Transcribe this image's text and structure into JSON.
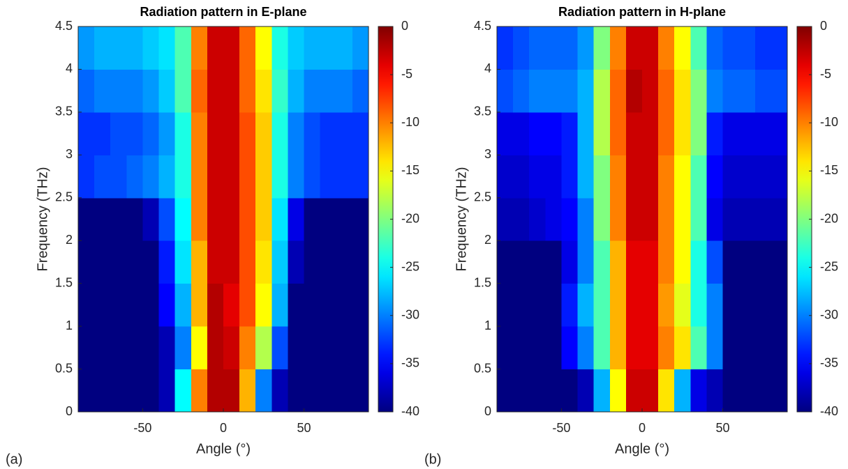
{
  "chart_data": [
    {
      "type": "heatmap",
      "panel_label": "(a)",
      "title": "Radiation pattern in E-plane",
      "x_label": "Angle (°)",
      "y_label": "Frequency (THz)",
      "colormap": "jet",
      "clim": [
        -40,
        0
      ],
      "cticks": [
        0,
        -5,
        -10,
        -15,
        -20,
        -25,
        -30,
        -35,
        -40
      ],
      "xlim": [
        -90,
        90
      ],
      "xticks": [
        -50,
        0,
        50
      ],
      "ylim": [
        0,
        4.5
      ],
      "yticks": [
        0,
        0.5,
        1,
        1.5,
        2,
        2.5,
        3,
        3.5,
        4,
        4.5
      ],
      "x": [
        -85,
        -75,
        -65,
        -55,
        -45,
        -35,
        -25,
        -15,
        -5,
        5,
        15,
        25,
        35,
        45,
        55,
        65,
        75,
        85
      ],
      "y": [
        0.25,
        0.75,
        1.25,
        1.75,
        2.25,
        2.75,
        3.25,
        3.75,
        4.25
      ],
      "z": [
        [
          -40,
          -40,
          -40,
          -40,
          -40,
          -38,
          -25,
          -10,
          -2,
          -2,
          -12,
          -30,
          -38,
          -40,
          -40,
          -40,
          -40,
          -40
        ],
        [
          -40,
          -40,
          -40,
          -40,
          -40,
          -38,
          -30,
          -15,
          -2,
          -3,
          -10,
          -18,
          -32,
          -40,
          -40,
          -40,
          -40,
          -40
        ],
        [
          -40,
          -40,
          -40,
          -40,
          -40,
          -35,
          -28,
          -12,
          -2,
          -4,
          -8,
          -15,
          -28,
          -40,
          -40,
          -40,
          -40,
          -40
        ],
        [
          -40,
          -40,
          -40,
          -40,
          -40,
          -34,
          -26,
          -12,
          -3,
          -3,
          -8,
          -14,
          -27,
          -38,
          -40,
          -40,
          -40,
          -40
        ],
        [
          -40,
          -40,
          -40,
          -40,
          -38,
          -32,
          -25,
          -10,
          -3,
          -3,
          -8,
          -13,
          -26,
          -36,
          -40,
          -40,
          -40,
          -40
        ],
        [
          -33,
          -32,
          -32,
          -31,
          -30,
          -28,
          -24,
          -10,
          -3,
          -3,
          -8,
          -13,
          -24,
          -30,
          -32,
          -33,
          -33,
          -33
        ],
        [
          -33,
          -33,
          -32,
          -32,
          -31,
          -29,
          -24,
          -10,
          -3,
          -3,
          -8,
          -13,
          -24,
          -30,
          -32,
          -33,
          -33,
          -33
        ],
        [
          -31,
          -30,
          -30,
          -30,
          -29,
          -27,
          -22,
          -9,
          -3,
          -3,
          -9,
          -14,
          -23,
          -28,
          -30,
          -30,
          -30,
          -31
        ],
        [
          -29,
          -28,
          -28,
          -28,
          -27,
          -26,
          -22,
          -10,
          -3,
          -3,
          -9,
          -15,
          -24,
          -27,
          -28,
          -28,
          -28,
          -29
        ]
      ]
    },
    {
      "type": "heatmap",
      "panel_label": "(b)",
      "title": "Radiation pattern in H-plane",
      "x_label": "Angle (°)",
      "y_label": "Frequency (THz)",
      "colormap": "jet",
      "clim": [
        -40,
        0
      ],
      "cticks": [
        0,
        -5,
        -10,
        -15,
        -20,
        -25,
        -30,
        -35,
        -40
      ],
      "xlim": [
        -90,
        90
      ],
      "xticks": [
        -50,
        0,
        50
      ],
      "ylim": [
        0,
        4.5
      ],
      "yticks": [
        0,
        0.5,
        1,
        1.5,
        2,
        2.5,
        3,
        3.5,
        4,
        4.5
      ],
      "x": [
        -85,
        -75,
        -65,
        -55,
        -45,
        -35,
        -25,
        -15,
        -5,
        5,
        15,
        25,
        35,
        45,
        55,
        65,
        75,
        85
      ],
      "y": [
        0.25,
        0.75,
        1.25,
        1.75,
        2.25,
        2.75,
        3.25,
        3.75,
        4.25
      ],
      "z": [
        [
          -40,
          -40,
          -40,
          -40,
          -40,
          -38,
          -28,
          -15,
          -3,
          -3,
          -14,
          -28,
          -36,
          -38,
          -40,
          -40,
          -40,
          -40
        ],
        [
          -40,
          -40,
          -40,
          -40,
          -35,
          -30,
          -22,
          -12,
          -4,
          -4,
          -10,
          -14,
          -22,
          -30,
          -40,
          -40,
          -40,
          -40
        ],
        [
          -40,
          -40,
          -40,
          -40,
          -34,
          -28,
          -22,
          -12,
          -4,
          -4,
          -11,
          -16,
          -24,
          -30,
          -40,
          -40,
          -40,
          -40
        ],
        [
          -40,
          -40,
          -40,
          -40,
          -36,
          -30,
          -22,
          -12,
          -4,
          -4,
          -10,
          -15,
          -24,
          -32,
          -40,
          -40,
          -40,
          -40
        ],
        [
          -38,
          -38,
          -37,
          -36,
          -35,
          -30,
          -20,
          -10,
          -3,
          -3,
          -10,
          -15,
          -22,
          -36,
          -38,
          -38,
          -38,
          -38
        ],
        [
          -37,
          -37,
          -36,
          -36,
          -34,
          -28,
          -20,
          -10,
          -3,
          -3,
          -10,
          -15,
          -22,
          -35,
          -37,
          -37,
          -37,
          -37
        ],
        [
          -36,
          -36,
          -35,
          -35,
          -34,
          -28,
          -18,
          -9,
          -3,
          -3,
          -9,
          -14,
          -20,
          -34,
          -36,
          -36,
          -36,
          -36
        ],
        [
          -32,
          -31,
          -30,
          -30,
          -30,
          -28,
          -18,
          -9,
          -2,
          -3,
          -9,
          -14,
          -20,
          -30,
          -31,
          -31,
          -32,
          -32
        ],
        [
          -33,
          -32,
          -31,
          -31,
          -31,
          -29,
          -20,
          -10,
          -3,
          -3,
          -10,
          -15,
          -22,
          -31,
          -32,
          -32,
          -33,
          -33
        ]
      ]
    }
  ]
}
